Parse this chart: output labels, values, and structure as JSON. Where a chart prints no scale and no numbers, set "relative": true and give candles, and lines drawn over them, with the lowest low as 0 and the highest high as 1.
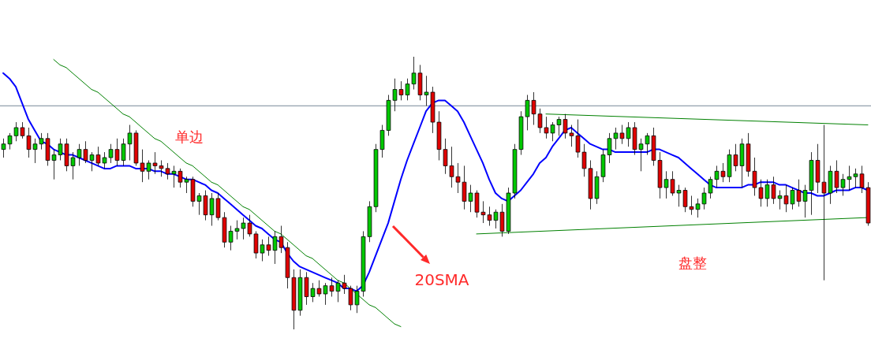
{
  "chart_data": {
    "type": "candlestick",
    "relative": true,
    "categories": [
      null,
      null,
      null,
      null,
      null,
      null,
      null,
      null,
      null,
      null,
      null,
      null,
      null,
      null,
      null,
      null,
      null,
      null,
      null,
      null,
      null,
      null,
      null,
      null,
      null,
      null,
      null,
      null,
      null,
      null,
      null,
      null,
      null,
      null,
      null,
      null,
      null,
      null,
      null,
      null,
      null,
      null,
      null,
      null,
      null,
      null,
      null,
      null,
      null,
      null,
      null,
      null,
      null,
      null,
      null,
      null,
      null,
      null,
      null,
      null,
      null,
      null,
      null,
      null,
      null,
      null,
      null,
      null,
      null,
      null,
      null,
      null,
      null,
      null,
      null,
      null,
      null,
      null,
      null,
      null,
      null,
      null,
      null,
      null,
      null,
      null,
      null,
      null,
      null,
      null,
      null,
      null,
      null,
      null,
      null,
      null,
      null,
      null,
      null,
      null,
      null,
      null,
      null,
      null,
      null,
      null,
      null,
      null,
      null,
      null,
      null,
      null,
      null,
      null,
      null,
      null,
      null,
      null,
      null,
      null,
      null,
      null,
      null,
      null,
      null,
      null,
      null,
      null,
      null,
      null,
      null,
      null,
      null,
      null,
      null,
      null,
      null,
      null
    ],
    "ohlc": [
      [
        0.66,
        0.7,
        0.63,
        0.68
      ],
      [
        0.68,
        0.72,
        0.66,
        0.71
      ],
      [
        0.71,
        0.76,
        0.69,
        0.74
      ],
      [
        0.74,
        0.76,
        0.7,
        0.71
      ],
      [
        0.71,
        0.74,
        0.63,
        0.66
      ],
      [
        0.66,
        0.7,
        0.61,
        0.68
      ],
      [
        0.68,
        0.72,
        0.66,
        0.7
      ],
      [
        0.7,
        0.72,
        0.6,
        0.62
      ],
      [
        0.62,
        0.66,
        0.55,
        0.64
      ],
      [
        0.64,
        0.7,
        0.62,
        0.68
      ],
      [
        0.68,
        0.7,
        0.58,
        0.6
      ],
      [
        0.6,
        0.65,
        0.55,
        0.63
      ],
      [
        0.63,
        0.68,
        0.6,
        0.66
      ],
      [
        0.66,
        0.69,
        0.61,
        0.62
      ],
      [
        0.62,
        0.65,
        0.58,
        0.64
      ],
      [
        0.64,
        0.67,
        0.6,
        0.61
      ],
      [
        0.61,
        0.65,
        0.59,
        0.63
      ],
      [
        0.63,
        0.68,
        0.61,
        0.66
      ],
      [
        0.66,
        0.7,
        0.6,
        0.62
      ],
      [
        0.62,
        0.7,
        0.6,
        0.68
      ],
      [
        0.68,
        0.75,
        0.62,
        0.72
      ],
      [
        0.72,
        0.73,
        0.6,
        0.61
      ],
      [
        0.61,
        0.66,
        0.54,
        0.58
      ],
      [
        0.58,
        0.62,
        0.55,
        0.61
      ],
      [
        0.61,
        0.65,
        0.57,
        0.6
      ],
      [
        0.6,
        0.62,
        0.56,
        0.59
      ],
      [
        0.59,
        0.61,
        0.55,
        0.57
      ],
      [
        0.57,
        0.6,
        0.52,
        0.58
      ],
      [
        0.58,
        0.59,
        0.52,
        0.54
      ],
      [
        0.54,
        0.56,
        0.5,
        0.55
      ],
      [
        0.55,
        0.56,
        0.45,
        0.47
      ],
      [
        0.47,
        0.5,
        0.42,
        0.49
      ],
      [
        0.49,
        0.51,
        0.4,
        0.42
      ],
      [
        0.42,
        0.5,
        0.38,
        0.48
      ],
      [
        0.48,
        0.5,
        0.4,
        0.41
      ],
      [
        0.41,
        0.43,
        0.3,
        0.32
      ],
      [
        0.32,
        0.38,
        0.29,
        0.36
      ],
      [
        0.36,
        0.4,
        0.33,
        0.37
      ],
      [
        0.37,
        0.41,
        0.33,
        0.39
      ],
      [
        0.39,
        0.42,
        0.34,
        0.35
      ],
      [
        0.35,
        0.36,
        0.26,
        0.28
      ],
      [
        0.28,
        0.33,
        0.25,
        0.31
      ],
      [
        0.31,
        0.34,
        0.27,
        0.29
      ],
      [
        0.29,
        0.36,
        0.24,
        0.34
      ],
      [
        0.34,
        0.38,
        0.28,
        0.3
      ],
      [
        0.3,
        0.32,
        0.15,
        0.19
      ],
      [
        0.19,
        0.22,
        0.0,
        0.07
      ],
      [
        0.07,
        0.22,
        0.05,
        0.19
      ],
      [
        0.19,
        0.21,
        0.09,
        0.12
      ],
      [
        0.12,
        0.17,
        0.1,
        0.15
      ],
      [
        0.15,
        0.18,
        0.12,
        0.13
      ],
      [
        0.13,
        0.17,
        0.09,
        0.16
      ],
      [
        0.16,
        0.19,
        0.12,
        0.14
      ],
      [
        0.14,
        0.18,
        0.1,
        0.17
      ],
      [
        0.17,
        0.2,
        0.13,
        0.15
      ],
      [
        0.15,
        0.16,
        0.07,
        0.09
      ],
      [
        0.09,
        0.16,
        0.06,
        0.14
      ],
      [
        0.14,
        0.36,
        0.12,
        0.34
      ],
      [
        0.34,
        0.47,
        0.32,
        0.45
      ],
      [
        0.45,
        0.68,
        0.43,
        0.66
      ],
      [
        0.66,
        0.75,
        0.63,
        0.73
      ],
      [
        0.73,
        0.86,
        0.71,
        0.84
      ],
      [
        0.84,
        0.92,
        0.8,
        0.88
      ],
      [
        0.88,
        0.91,
        0.84,
        0.86
      ],
      [
        0.86,
        0.92,
        0.84,
        0.9
      ],
      [
        0.9,
        1.0,
        0.88,
        0.94
      ],
      [
        0.94,
        0.97,
        0.84,
        0.86
      ],
      [
        0.86,
        0.93,
        0.82,
        0.87
      ],
      [
        0.87,
        0.89,
        0.72,
        0.76
      ],
      [
        0.76,
        0.8,
        0.62,
        0.66
      ],
      [
        0.66,
        0.7,
        0.57,
        0.6
      ],
      [
        0.6,
        0.67,
        0.52,
        0.56
      ],
      [
        0.56,
        0.61,
        0.5,
        0.54
      ],
      [
        0.54,
        0.6,
        0.44,
        0.47
      ],
      [
        0.47,
        0.53,
        0.43,
        0.5
      ],
      [
        0.5,
        0.51,
        0.41,
        0.43
      ],
      [
        0.43,
        0.47,
        0.39,
        0.42
      ],
      [
        0.42,
        0.45,
        0.38,
        0.4
      ],
      [
        0.4,
        0.44,
        0.37,
        0.43
      ],
      [
        0.43,
        0.46,
        0.34,
        0.36
      ],
      [
        0.36,
        0.52,
        0.35,
        0.5
      ],
      [
        0.5,
        0.68,
        0.48,
        0.66
      ],
      [
        0.66,
        0.8,
        0.64,
        0.78
      ],
      [
        0.78,
        0.86,
        0.73,
        0.84
      ],
      [
        0.84,
        0.87,
        0.75,
        0.79
      ],
      [
        0.79,
        0.81,
        0.72,
        0.74
      ],
      [
        0.74,
        0.78,
        0.7,
        0.72
      ],
      [
        0.72,
        0.76,
        0.69,
        0.75
      ],
      [
        0.75,
        0.78,
        0.71,
        0.77
      ],
      [
        0.77,
        0.79,
        0.7,
        0.72
      ],
      [
        0.72,
        0.75,
        0.67,
        0.71
      ],
      [
        0.71,
        0.77,
        0.63,
        0.65
      ],
      [
        0.65,
        0.68,
        0.56,
        0.59
      ],
      [
        0.59,
        0.62,
        0.44,
        0.48
      ],
      [
        0.48,
        0.58,
        0.46,
        0.56
      ],
      [
        0.56,
        0.66,
        0.54,
        0.64
      ],
      [
        0.64,
        0.72,
        0.61,
        0.7
      ],
      [
        0.7,
        0.74,
        0.66,
        0.72
      ],
      [
        0.72,
        0.75,
        0.68,
        0.7
      ],
      [
        0.7,
        0.76,
        0.67,
        0.74
      ],
      [
        0.74,
        0.76,
        0.64,
        0.66
      ],
      [
        0.66,
        0.7,
        0.58,
        0.68
      ],
      [
        0.68,
        0.72,
        0.64,
        0.71
      ],
      [
        0.71,
        0.74,
        0.6,
        0.62
      ],
      [
        0.62,
        0.65,
        0.48,
        0.52
      ],
      [
        0.52,
        0.58,
        0.48,
        0.55
      ],
      [
        0.55,
        0.58,
        0.49,
        0.5
      ],
      [
        0.5,
        0.53,
        0.45,
        0.51
      ],
      [
        0.51,
        0.52,
        0.43,
        0.45
      ],
      [
        0.45,
        0.49,
        0.42,
        0.44
      ],
      [
        0.44,
        0.48,
        0.41,
        0.46
      ],
      [
        0.46,
        0.52,
        0.44,
        0.5
      ],
      [
        0.5,
        0.56,
        0.48,
        0.55
      ],
      [
        0.55,
        0.6,
        0.52,
        0.58
      ],
      [
        0.58,
        0.61,
        0.54,
        0.56
      ],
      [
        0.56,
        0.66,
        0.54,
        0.64
      ],
      [
        0.64,
        0.68,
        0.58,
        0.6
      ],
      [
        0.6,
        0.7,
        0.52,
        0.68
      ],
      [
        0.68,
        0.72,
        0.56,
        0.58
      ],
      [
        0.58,
        0.63,
        0.49,
        0.52
      ],
      [
        0.52,
        0.55,
        0.45,
        0.48
      ],
      [
        0.48,
        0.55,
        0.45,
        0.53
      ],
      [
        0.53,
        0.56,
        0.46,
        0.48
      ],
      [
        0.48,
        0.51,
        0.44,
        0.49
      ],
      [
        0.49,
        0.53,
        0.43,
        0.46
      ],
      [
        0.46,
        0.52,
        0.44,
        0.51
      ],
      [
        0.51,
        0.55,
        0.45,
        0.47
      ],
      [
        0.47,
        0.53,
        0.41,
        0.51
      ],
      [
        0.51,
        0.65,
        0.42,
        0.62
      ],
      [
        0.62,
        0.68,
        0.5,
        0.54
      ],
      [
        0.54,
        0.75,
        0.18,
        0.5
      ],
      [
        0.5,
        0.6,
        0.46,
        0.58
      ],
      [
        0.58,
        0.62,
        0.5,
        0.52
      ],
      [
        0.52,
        0.57,
        0.49,
        0.55
      ],
      [
        0.55,
        0.6,
        0.51,
        0.56
      ],
      [
        0.56,
        0.59,
        0.52,
        0.57
      ],
      [
        0.57,
        0.6,
        0.5,
        0.52
      ],
      [
        0.52,
        0.54,
        0.38,
        0.39
      ]
    ],
    "series": [
      {
        "type": "line",
        "color": "#0000ff",
        "values": [
          0.94,
          0.92,
          0.89,
          0.83,
          0.77,
          0.73,
          0.69,
          0.68,
          0.66,
          0.65,
          0.64,
          0.64,
          0.63,
          0.62,
          0.61,
          0.6,
          0.59,
          0.59,
          0.6,
          0.6,
          0.6,
          0.59,
          0.59,
          0.59,
          0.58,
          0.58,
          0.57,
          0.57,
          0.56,
          0.55,
          0.55,
          0.54,
          0.53,
          0.51,
          0.5,
          0.48,
          0.46,
          0.44,
          0.42,
          0.4,
          0.38,
          0.37,
          0.35,
          0.33,
          0.32,
          0.28,
          0.25,
          0.23,
          0.22,
          0.21,
          0.2,
          0.19,
          0.18,
          0.17,
          0.15,
          0.15,
          0.14,
          0.16,
          0.21,
          0.27,
          0.33,
          0.39,
          0.47,
          0.55,
          0.62,
          0.68,
          0.74,
          0.8,
          0.83,
          0.84,
          0.84,
          0.82,
          0.8,
          0.76,
          0.71,
          0.66,
          0.61,
          0.55,
          0.5,
          0.48,
          0.47,
          0.49,
          0.51,
          0.54,
          0.57,
          0.61,
          0.63,
          0.67,
          0.7,
          0.73,
          0.74,
          0.72,
          0.7,
          0.68,
          0.67,
          0.66,
          0.66,
          0.65,
          0.65,
          0.65,
          0.65,
          0.65,
          0.65,
          0.66,
          0.66,
          0.65,
          0.64,
          0.63,
          0.61,
          0.59,
          0.57,
          0.55,
          0.53,
          0.52,
          0.52,
          0.52,
          0.52,
          0.52,
          0.53,
          0.53,
          0.54,
          0.54,
          0.54,
          0.53,
          0.53,
          0.52,
          0.51,
          0.5,
          0.5,
          0.49,
          0.49,
          0.5,
          0.51,
          0.51,
          0.51,
          0.52,
          0.52,
          0.51
        ]
      },
      {
        "type": "line",
        "color": "#008000",
        "values": [
          null,
          null,
          null,
          null,
          null,
          null,
          null,
          null,
          0.99,
          0.97,
          0.96,
          0.94,
          0.92,
          0.9,
          0.88,
          0.87,
          0.85,
          0.83,
          0.81,
          0.79,
          0.78,
          0.76,
          0.74,
          0.72,
          0.7,
          0.69,
          0.67,
          0.65,
          0.63,
          0.61,
          0.6,
          0.58,
          0.56,
          0.54,
          0.53,
          0.51,
          0.49,
          0.47,
          0.45,
          0.44,
          0.42,
          0.4,
          0.38,
          0.36,
          0.35,
          0.33,
          0.31,
          0.29,
          0.27,
          0.26,
          0.24,
          0.22,
          0.2,
          0.18,
          0.17,
          0.15,
          0.13,
          0.11,
          0.09,
          0.08,
          0.06,
          0.04,
          0.02,
          0.01,
          null,
          null,
          null,
          null,
          null,
          null,
          null,
          null,
          null,
          null,
          null,
          null,
          null,
          null,
          null,
          null,
          null,
          null,
          null,
          null,
          null,
          null,
          null,
          null,
          null,
          null,
          null,
          null,
          null,
          null,
          null,
          null,
          null,
          null,
          null,
          null,
          null,
          null,
          null,
          null,
          null,
          null,
          null,
          null,
          null,
          null,
          null,
          null,
          null,
          null,
          null,
          null,
          null,
          null,
          null,
          null,
          null,
          null,
          null,
          null,
          null,
          null,
          null,
          null,
          null,
          null,
          null,
          null,
          null,
          null,
          null,
          null,
          null,
          null
        ]
      },
      {
        "type": "line",
        "color": "#008000",
        "values": [
          null,
          null,
          null,
          null,
          null,
          null,
          null,
          null,
          null,
          null,
          null,
          null,
          null,
          null,
          null,
          null,
          null,
          null,
          null,
          null,
          null,
          null,
          null,
          null,
          null,
          null,
          null,
          null,
          null,
          null,
          null,
          null,
          null,
          null,
          null,
          null,
          null,
          null,
          null,
          null,
          null,
          null,
          null,
          null,
          null,
          null,
          null,
          null,
          null,
          null,
          null,
          null,
          null,
          null,
          null,
          null,
          null,
          null,
          null,
          null,
          null,
          null,
          null,
          null,
          null,
          null,
          null,
          null,
          null,
          null,
          null,
          null,
          null,
          null,
          null,
          null,
          null,
          null,
          null,
          null,
          null,
          null,
          null,
          null,
          null,
          null,
          0.79,
          null,
          null,
          null,
          null,
          null,
          null,
          null,
          null,
          null,
          null,
          null,
          null,
          null,
          null,
          null,
          null,
          null,
          null,
          null,
          null,
          null,
          null,
          null,
          null,
          null,
          null,
          null,
          null,
          null,
          null,
          null,
          null,
          null,
          null,
          null,
          null,
          null,
          null,
          null,
          null,
          null,
          null,
          null,
          null,
          null,
          null,
          null,
          null,
          null,
          null,
          0.75
        ]
      },
      {
        "type": "line",
        "color": "#008000",
        "values": [
          null,
          null,
          null,
          null,
          null,
          null,
          null,
          null,
          null,
          null,
          null,
          null,
          null,
          null,
          null,
          null,
          null,
          null,
          null,
          null,
          null,
          null,
          null,
          null,
          null,
          null,
          null,
          null,
          null,
          null,
          null,
          null,
          null,
          null,
          null,
          null,
          null,
          null,
          null,
          null,
          null,
          null,
          null,
          null,
          null,
          null,
          null,
          null,
          null,
          null,
          null,
          null,
          null,
          null,
          null,
          null,
          null,
          null,
          null,
          null,
          null,
          null,
          null,
          null,
          null,
          null,
          null,
          null,
          null,
          null,
          null,
          null,
          null,
          null,
          null,
          0.35,
          null,
          null,
          null,
          null,
          null,
          null,
          null,
          null,
          null,
          null,
          null,
          null,
          null,
          null,
          null,
          null,
          null,
          null,
          null,
          null,
          null,
          null,
          null,
          null,
          null,
          null,
          null,
          null,
          null,
          null,
          null,
          null,
          null,
          null,
          null,
          null,
          null,
          null,
          null,
          null,
          null,
          null,
          null,
          null,
          null,
          null,
          null,
          null,
          null,
          null,
          null,
          null,
          null,
          null,
          null,
          null,
          null,
          null,
          null,
          null,
          null,
          0.41
        ]
      }
    ],
    "ref_lines": [
      {
        "axis": "y",
        "value": 0.82,
        "color": "#778899"
      }
    ],
    "annotations": [
      "单边",
      "盘整",
      "20SMA"
    ]
  }
}
